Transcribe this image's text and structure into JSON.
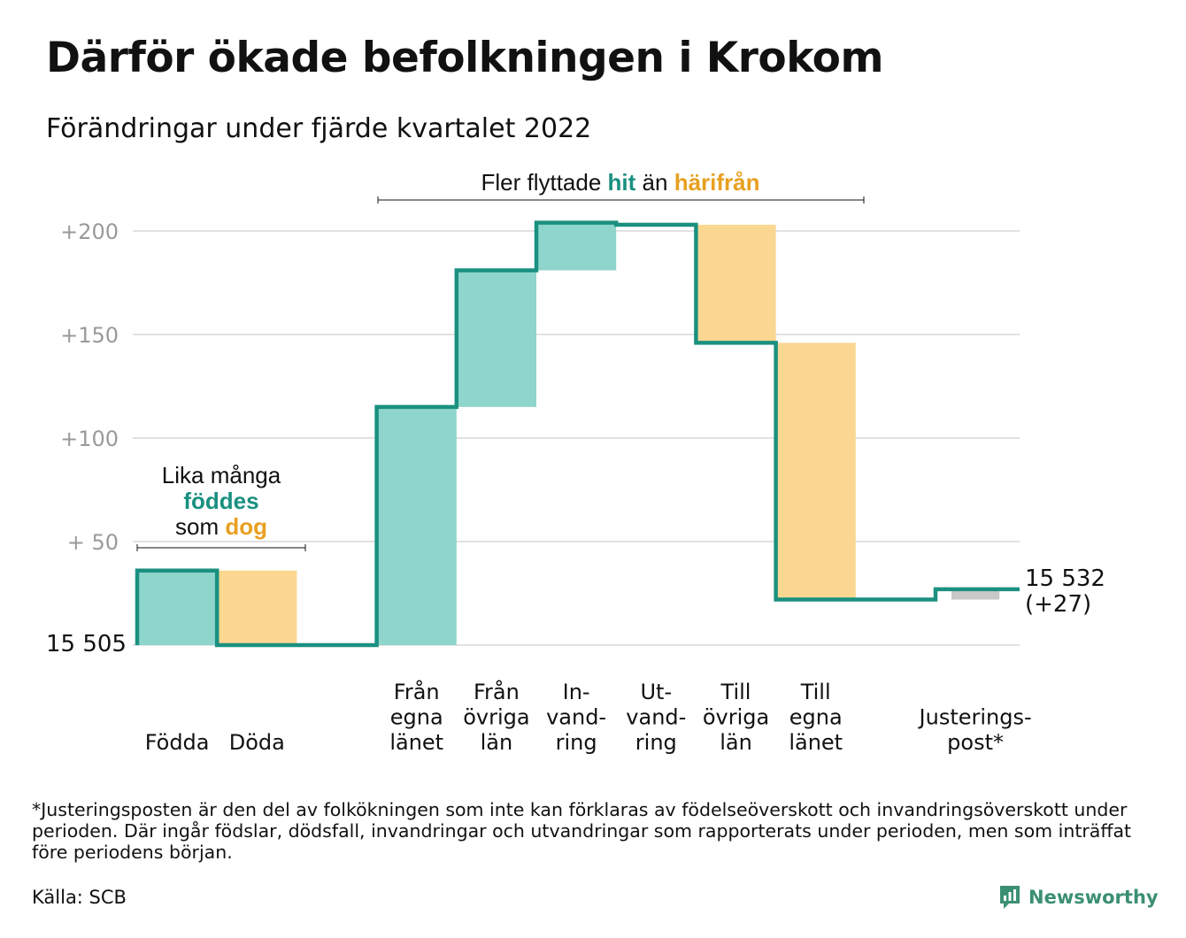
{
  "title": "Därför ökade befolkningen i Krokom",
  "subtitle": "Förändringar under fjärde kvartalet 2022",
  "colors": {
    "line": "#1a9080",
    "increase": "#8ed5cb",
    "decrease": "#fbd792",
    "adjustment": "#c8c8c8",
    "grid": "#e2e2e2",
    "axis_label": "#9a9a9a",
    "teal_text": "#1a9080",
    "orange_text": "#e8a020"
  },
  "annotations": {
    "births_deaths": {
      "line1": "Lika många",
      "line2": "föddes",
      "line3_pre": "som ",
      "line3_highlight": "dog"
    },
    "migration": {
      "pre": "Fler flyttade ",
      "highlight1": "hit",
      "mid": " än ",
      "highlight2": "härifrån"
    }
  },
  "start_label": "15 505",
  "end_label_line1": "15 532",
  "end_label_line2": "(+27)",
  "chart_data": {
    "type": "waterfall",
    "start_value": 15505,
    "end_value": 15532,
    "net_change": 27,
    "yticks": [
      {
        "value": 50,
        "label": "+ 50"
      },
      {
        "value": 100,
        "label": "+100"
      },
      {
        "value": 150,
        "label": "+150"
      },
      {
        "value": 200,
        "label": "+200"
      }
    ],
    "ylim": [
      0,
      200
    ],
    "steps": [
      {
        "label_lines": [
          "Födda"
        ],
        "change": 36,
        "kind": "increase"
      },
      {
        "label_lines": [
          "Döda"
        ],
        "change": -36,
        "kind": "decrease"
      },
      {
        "label_lines": [],
        "change": 0,
        "kind": "gap"
      },
      {
        "label_lines": [
          "Från",
          "egna",
          "länet"
        ],
        "change": 115,
        "kind": "increase"
      },
      {
        "label_lines": [
          "Från",
          "övriga",
          "län"
        ],
        "change": 66,
        "kind": "increase"
      },
      {
        "label_lines": [
          "In-",
          "vand-",
          "ring"
        ],
        "change": 23,
        "kind": "increase"
      },
      {
        "label_lines": [
          "Ut-",
          "vand-",
          "ring"
        ],
        "change": -1,
        "kind": "decrease"
      },
      {
        "label_lines": [
          "Till",
          "övriga",
          "län"
        ],
        "change": -57,
        "kind": "decrease"
      },
      {
        "label_lines": [
          "Till",
          "egna",
          "länet"
        ],
        "change": -124,
        "kind": "decrease"
      },
      {
        "label_lines": [],
        "change": 0,
        "kind": "gap"
      },
      {
        "label_lines": [
          "Justerings-",
          "post*"
        ],
        "change": 5,
        "kind": "adjustment"
      }
    ]
  },
  "footnote": "*Justeringsposten är den del av folkökningen som inte kan förklaras av födelseöverskott och invandringsöverskott under perioden. Där ingår födslar, dödsfall, invandringar och utvandringar som rapporterats under perioden, men som inträffat före periodens början.",
  "source": "Källa: SCB",
  "brand": "Newsworthy"
}
